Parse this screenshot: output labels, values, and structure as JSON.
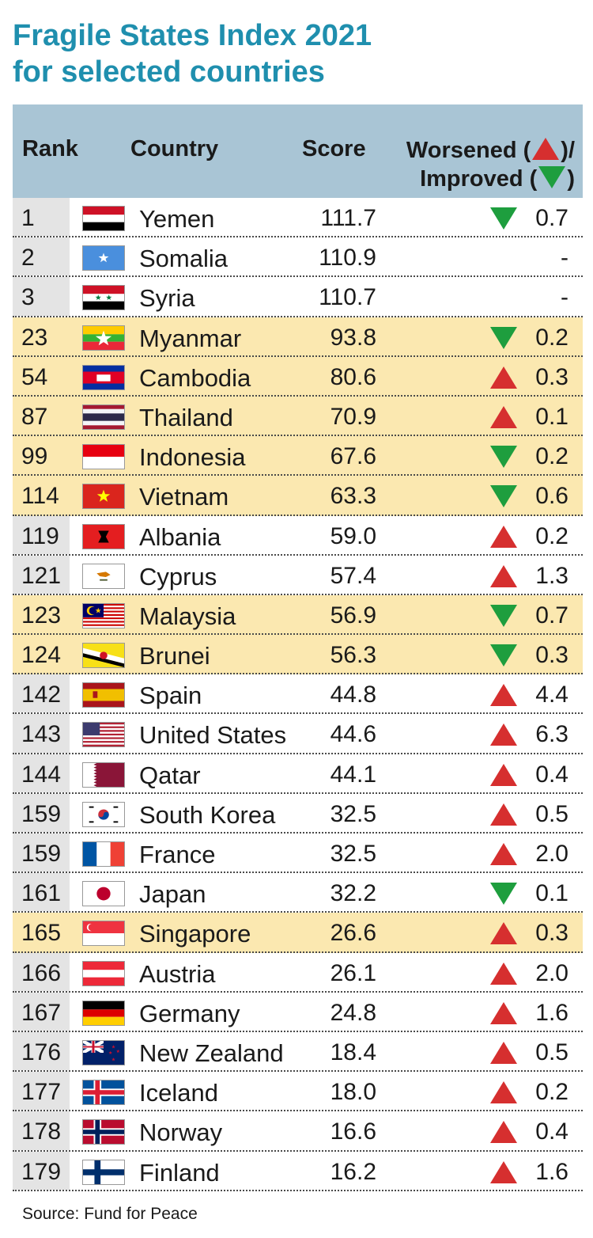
{
  "title_line1": "Fragile States Index 2021",
  "title_line2": "for selected countries",
  "header": {
    "rank": "Rank",
    "country": "Country",
    "score": "Score",
    "change_line1_a": "Worsened (",
    "change_line1_b": ")/",
    "change_line2_a": "Improved (",
    "change_line2_b": ")"
  },
  "source": "Source: Fund for Peace",
  "colors": {
    "title": "#1f8fae",
    "header_bg": "#a9c5d5",
    "highlight": "#fbe8b0",
    "up": "#d62f2f",
    "down": "#1e9e3e"
  },
  "chart_data": {
    "type": "table",
    "title": "Fragile States Index 2021 for selected countries",
    "columns": [
      "Rank",
      "Country",
      "Score",
      "Worsened / Improved"
    ],
    "rows": [
      {
        "rank": "1",
        "country": "Yemen",
        "score": "111.7",
        "dir": "down",
        "change": "0.7",
        "hl": false,
        "flag": "yemen"
      },
      {
        "rank": "2",
        "country": "Somalia",
        "score": "110.9",
        "dir": "none",
        "change": "-",
        "hl": false,
        "flag": "somalia"
      },
      {
        "rank": "3",
        "country": "Syria",
        "score": "110.7",
        "dir": "none",
        "change": "-",
        "hl": false,
        "flag": "syria"
      },
      {
        "rank": "23",
        "country": "Myanmar",
        "score": "93.8",
        "dir": "down",
        "change": "0.2",
        "hl": true,
        "flag": "myanmar"
      },
      {
        "rank": "54",
        "country": "Cambodia",
        "score": "80.6",
        "dir": "up",
        "change": "0.3",
        "hl": true,
        "flag": "cambodia"
      },
      {
        "rank": "87",
        "country": "Thailand",
        "score": "70.9",
        "dir": "up",
        "change": "0.1",
        "hl": true,
        "flag": "thailand"
      },
      {
        "rank": "99",
        "country": "Indonesia",
        "score": "67.6",
        "dir": "down",
        "change": "0.2",
        "hl": true,
        "flag": "indonesia"
      },
      {
        "rank": "114",
        "country": "Vietnam",
        "score": "63.3",
        "dir": "down",
        "change": "0.6",
        "hl": true,
        "flag": "vietnam"
      },
      {
        "rank": "119",
        "country": "Albania",
        "score": "59.0",
        "dir": "up",
        "change": "0.2",
        "hl": false,
        "flag": "albania"
      },
      {
        "rank": "121",
        "country": "Cyprus",
        "score": "57.4",
        "dir": "up",
        "change": "1.3",
        "hl": false,
        "flag": "cyprus"
      },
      {
        "rank": "123",
        "country": "Malaysia",
        "score": "56.9",
        "dir": "down",
        "change": "0.7",
        "hl": true,
        "flag": "malaysia"
      },
      {
        "rank": "124",
        "country": "Brunei",
        "score": "56.3",
        "dir": "down",
        "change": "0.3",
        "hl": true,
        "flag": "brunei"
      },
      {
        "rank": "142",
        "country": "Spain",
        "score": "44.8",
        "dir": "up",
        "change": "4.4",
        "hl": false,
        "flag": "spain"
      },
      {
        "rank": "143",
        "country": "United States",
        "score": "44.6",
        "dir": "up",
        "change": "6.3",
        "hl": false,
        "flag": "usa"
      },
      {
        "rank": "144",
        "country": "Qatar",
        "score": "44.1",
        "dir": "up",
        "change": "0.4",
        "hl": false,
        "flag": "qatar"
      },
      {
        "rank": "159",
        "country": "South Korea",
        "score": "32.5",
        "dir": "up",
        "change": "0.5",
        "hl": false,
        "flag": "southkorea"
      },
      {
        "rank": "159",
        "country": "France",
        "score": "32.5",
        "dir": "up",
        "change": "2.0",
        "hl": false,
        "flag": "france"
      },
      {
        "rank": "161",
        "country": "Japan",
        "score": "32.2",
        "dir": "down",
        "change": "0.1",
        "hl": false,
        "flag": "japan"
      },
      {
        "rank": "165",
        "country": "Singapore",
        "score": "26.6",
        "dir": "up",
        "change": "0.3",
        "hl": true,
        "flag": "singapore"
      },
      {
        "rank": "166",
        "country": "Austria",
        "score": "26.1",
        "dir": "up",
        "change": "2.0",
        "hl": false,
        "flag": "austria"
      },
      {
        "rank": "167",
        "country": "Germany",
        "score": "24.8",
        "dir": "up",
        "change": "1.6",
        "hl": false,
        "flag": "germany"
      },
      {
        "rank": "176",
        "country": "New Zealand",
        "score": "18.4",
        "dir": "up",
        "change": "0.5",
        "hl": false,
        "flag": "newzealand"
      },
      {
        "rank": "177",
        "country": "Iceland",
        "score": "18.0",
        "dir": "up",
        "change": "0.2",
        "hl": false,
        "flag": "iceland"
      },
      {
        "rank": "178",
        "country": "Norway",
        "score": "16.6",
        "dir": "up",
        "change": "0.4",
        "hl": false,
        "flag": "norway"
      },
      {
        "rank": "179",
        "country": "Finland",
        "score": "16.2",
        "dir": "up",
        "change": "1.6",
        "hl": false,
        "flag": "finland"
      }
    ]
  }
}
